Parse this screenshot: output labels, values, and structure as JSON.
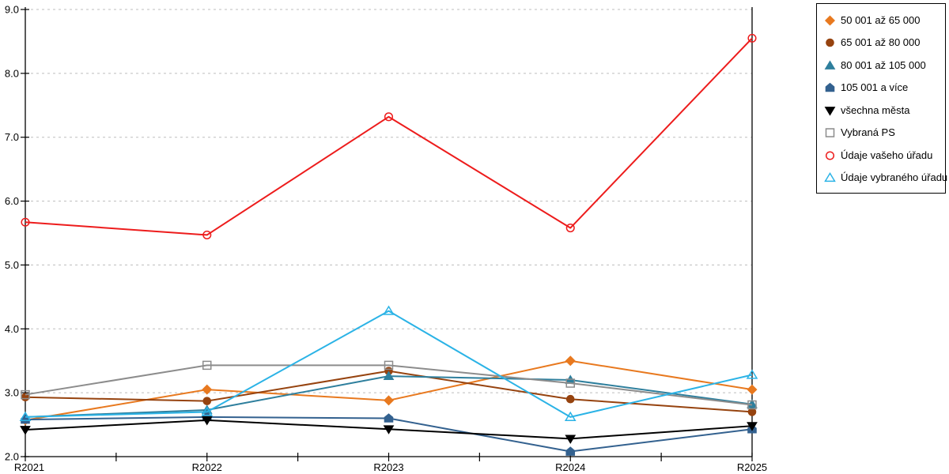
{
  "chart_data": {
    "type": "line",
    "title": "",
    "xlabel": "",
    "ylabel": "",
    "categories": [
      "R2021",
      "R2022",
      "R2023",
      "R2024",
      "R2025"
    ],
    "ylim": [
      2.0,
      9.0
    ],
    "y_tick_labels": [
      "2.0",
      "3.0",
      "4.0",
      "5.0",
      "6.0",
      "7.0",
      "8.0",
      "9.0"
    ],
    "grid": "horizontal-dashed",
    "gridline_color": "#BDBDBD",
    "legend_position": "outside-top-right",
    "series": [
      {
        "name": "50 001 až 65 000",
        "marker": "diamond",
        "style": "filled",
        "color": "#E8791F",
        "values": [
          2.57,
          3.05,
          2.88,
          3.5,
          3.05
        ]
      },
      {
        "name": "65 001 až 80 000",
        "marker": "circle",
        "style": "filled",
        "color": "#96430F",
        "values": [
          2.93,
          2.87,
          3.34,
          2.9,
          2.7
        ]
      },
      {
        "name": "80 001 až 105 000",
        "marker": "triangle-up",
        "style": "filled",
        "color": "#2E7F9D",
        "values": [
          2.62,
          2.73,
          3.26,
          3.2,
          2.82
        ]
      },
      {
        "name": "105 001 a více",
        "marker": "pentagon",
        "style": "filled",
        "color": "#33618F",
        "values": [
          2.58,
          2.62,
          2.6,
          2.08,
          2.43
        ]
      },
      {
        "name": "všechna města",
        "marker": "triangle-down",
        "style": "filled",
        "color": "#000000",
        "values": [
          2.42,
          2.57,
          2.43,
          2.28,
          2.48
        ]
      },
      {
        "name": "Vybraná PS",
        "marker": "square",
        "style": "open",
        "color": "#8C8C8C",
        "values": [
          2.97,
          3.43,
          3.43,
          3.15,
          2.81
        ]
      },
      {
        "name": "Údaje vašeho úřadu",
        "marker": "circle",
        "style": "open",
        "color": "#ED1C1C",
        "values": [
          5.67,
          5.47,
          7.32,
          5.58,
          8.55
        ]
      },
      {
        "name": "Údaje vybraného úřadu",
        "marker": "triangle-up",
        "style": "open",
        "color": "#2BB3E6",
        "values": [
          2.62,
          2.7,
          4.28,
          2.62,
          3.28
        ]
      }
    ]
  }
}
